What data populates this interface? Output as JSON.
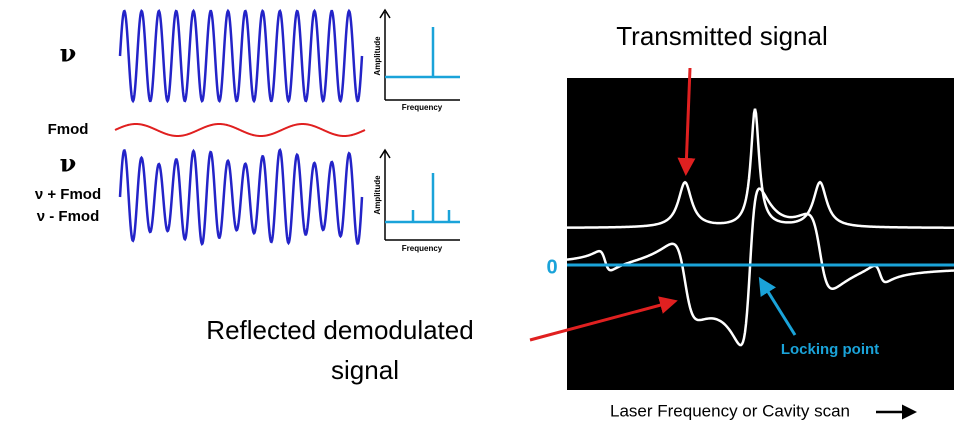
{
  "left_panel": {
    "carrier_label": "ν",
    "fmod_label": "Fmod",
    "sideband_labels": [
      "ν",
      "ν + Fmod",
      "ν - Fmod"
    ],
    "spectrum_1": {
      "y_label": "Amplitude",
      "x_label": "Frequency"
    },
    "spectrum_2": {
      "y_label": "Amplitude",
      "x_label": "Frequency"
    }
  },
  "right_panel": {
    "transmitted_label": "Transmitted signal",
    "reflected_label": [
      "Reflected demodulated",
      "signal"
    ],
    "zero_label": "0",
    "locking_label": "Locking point",
    "x_axis_label": "Laser Frequency or Cavity scan"
  }
}
